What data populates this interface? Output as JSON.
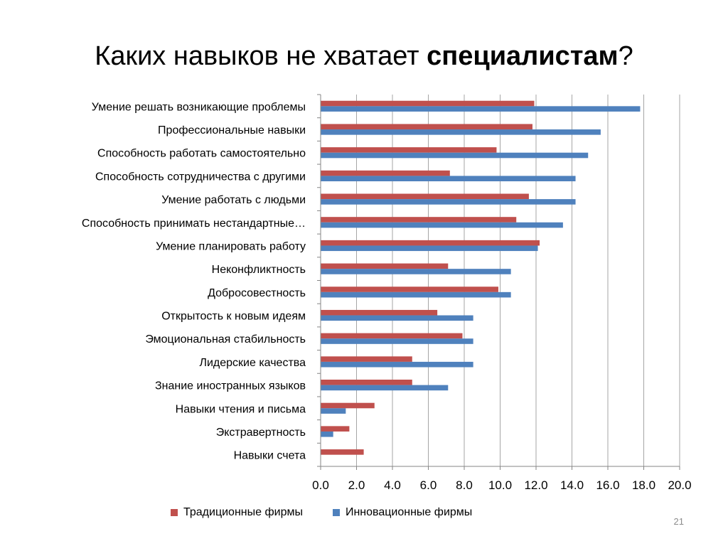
{
  "slide": {
    "title_prefix": "Каких навыков не хватает ",
    "title_bold": "специалистам",
    "title_suffix": "?",
    "page_number": "21"
  },
  "colors": {
    "series1": "#c0504d",
    "series2": "#4f81bd",
    "grid": "#a6a6a6",
    "axis": "#868686",
    "text": "#000000"
  },
  "chart_data": {
    "type": "bar",
    "orientation": "horizontal",
    "title": "",
    "xlabel": "",
    "ylabel": "",
    "xlim": [
      0,
      20
    ],
    "xticks": [
      "0.0",
      "2.0",
      "4.0",
      "6.0",
      "8.0",
      "10.0",
      "12.0",
      "14.0",
      "16.0",
      "18.0",
      "20.0"
    ],
    "grid": true,
    "legend_position": "bottom",
    "categories": [
      "Умение решать возникающие  проблемы",
      "Профессиональные навыки",
      "Способность работать самостоятельно",
      "Способность сотрудничества с другими",
      "Умение работать с людьми",
      "Способность принимать нестандартные…",
      "Умение планировать работу",
      "Неконфликтность",
      "Добросовестность",
      "Открытость к новым идеям",
      "Эмоциональная стабильность",
      "Лидерские качества",
      "Знание иностранных языков",
      "Навыки чтения и письма",
      "Экстравертность",
      "Навыки счета"
    ],
    "series": [
      {
        "name": "Традиционные фирмы",
        "color": "#c0504d",
        "values": [
          11.9,
          11.8,
          9.8,
          7.2,
          11.6,
          10.9,
          12.2,
          7.1,
          9.9,
          6.5,
          7.9,
          5.1,
          5.1,
          3.0,
          1.6,
          2.4
        ]
      },
      {
        "name": "Инновационные фирмы",
        "color": "#4f81bd",
        "values": [
          17.8,
          15.6,
          14.9,
          14.2,
          14.2,
          13.5,
          12.1,
          10.6,
          10.6,
          8.5,
          8.5,
          8.5,
          7.1,
          1.4,
          0.7,
          0.0
        ]
      }
    ]
  }
}
